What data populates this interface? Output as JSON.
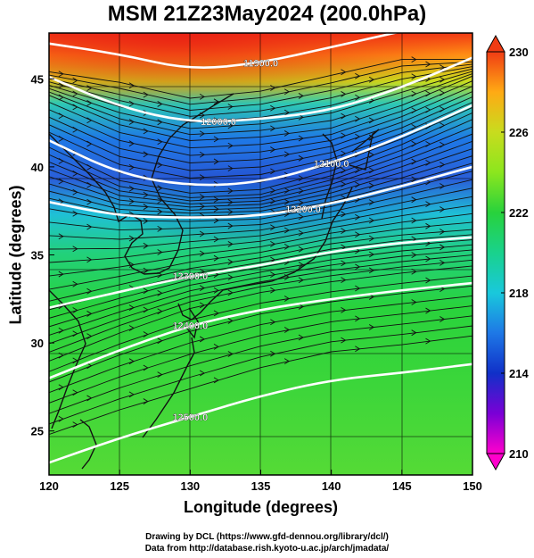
{
  "title": "MSM 21Z23May2024 (200.0hPa)",
  "xlabel": "Longitude (degrees)",
  "ylabel": "Latitude  (degrees)",
  "credits": {
    "line1": "Drawing by DCL (https://www.gfd-dennou.org/library/dcl/)",
    "line2": "Data from http://database.rish.kyoto-u.ac.jp/arch/jmadata/"
  },
  "chart_data": {
    "type": "heatmap",
    "x_range": [
      120,
      150
    ],
    "y_range": [
      22.5,
      47.6
    ],
    "x_ticks": [
      "120",
      "125",
      "130",
      "135",
      "140",
      "145",
      "150"
    ],
    "y_ticks": [
      "25",
      "30",
      "35",
      "40",
      "45"
    ],
    "colorbar": {
      "min": 210,
      "max": 230,
      "tick_labels": [
        "230",
        "226",
        "222",
        "218",
        "214",
        "210"
      ],
      "colors": [
        "#ff00cc",
        "#7a00d6",
        "#1030c8",
        "#1e78e6",
        "#19c8dc",
        "#19d28c",
        "#28d23c",
        "#8ce61e",
        "#c8dc1e",
        "#ffaa14",
        "#f03c14"
      ]
    },
    "contours": [
      {
        "label": "11900.0",
        "lat_at": [
          [
            120,
            47.0
          ],
          [
            125,
            46.4
          ],
          [
            130,
            45.5
          ],
          [
            135,
            45.9
          ],
          [
            140,
            46.8
          ],
          [
            145,
            47.7
          ]
        ]
      },
      {
        "label": "12000.0",
        "lat_at": [
          [
            120,
            45.1
          ],
          [
            125,
            43.4
          ],
          [
            130,
            42.5
          ],
          [
            135,
            42.7
          ],
          [
            140,
            43.2
          ],
          [
            145,
            44.5
          ],
          [
            150,
            46.2
          ]
        ]
      },
      {
        "label": "12100.0",
        "lat_at": [
          [
            120,
            41.5
          ],
          [
            125,
            39.6
          ],
          [
            130,
            38.9
          ],
          [
            135,
            39.1
          ],
          [
            140,
            40.2
          ],
          [
            145,
            41.7
          ],
          [
            150,
            43.5
          ]
        ]
      },
      {
        "label": "12200.0",
        "lat_at": [
          [
            120,
            38.0
          ],
          [
            125,
            37.2
          ],
          [
            130,
            37.1
          ],
          [
            135,
            37.2
          ],
          [
            140,
            37.9
          ],
          [
            145,
            38.9
          ],
          [
            150,
            40.0
          ]
        ]
      },
      {
        "label": "12300.0",
        "lat_at": [
          [
            120,
            32.0
          ],
          [
            125,
            32.9
          ],
          [
            130,
            33.8
          ],
          [
            135,
            34.4
          ],
          [
            140,
            35.2
          ],
          [
            145,
            35.7
          ],
          [
            150,
            36.0
          ]
        ]
      },
      {
        "label": "12400.0",
        "lat_at": [
          [
            120,
            28.0
          ],
          [
            125,
            29.6
          ],
          [
            130,
            31.0
          ],
          [
            135,
            31.9
          ],
          [
            140,
            32.5
          ],
          [
            145,
            33.0
          ],
          [
            150,
            33.4
          ]
        ]
      },
      {
        "label": "12500.0",
        "lat_at": [
          [
            120,
            23.2
          ],
          [
            125,
            24.6
          ],
          [
            130,
            25.8
          ],
          [
            135,
            27.0
          ],
          [
            140,
            27.9
          ],
          [
            145,
            28.3
          ],
          [
            150,
            28.8
          ]
        ]
      }
    ]
  }
}
